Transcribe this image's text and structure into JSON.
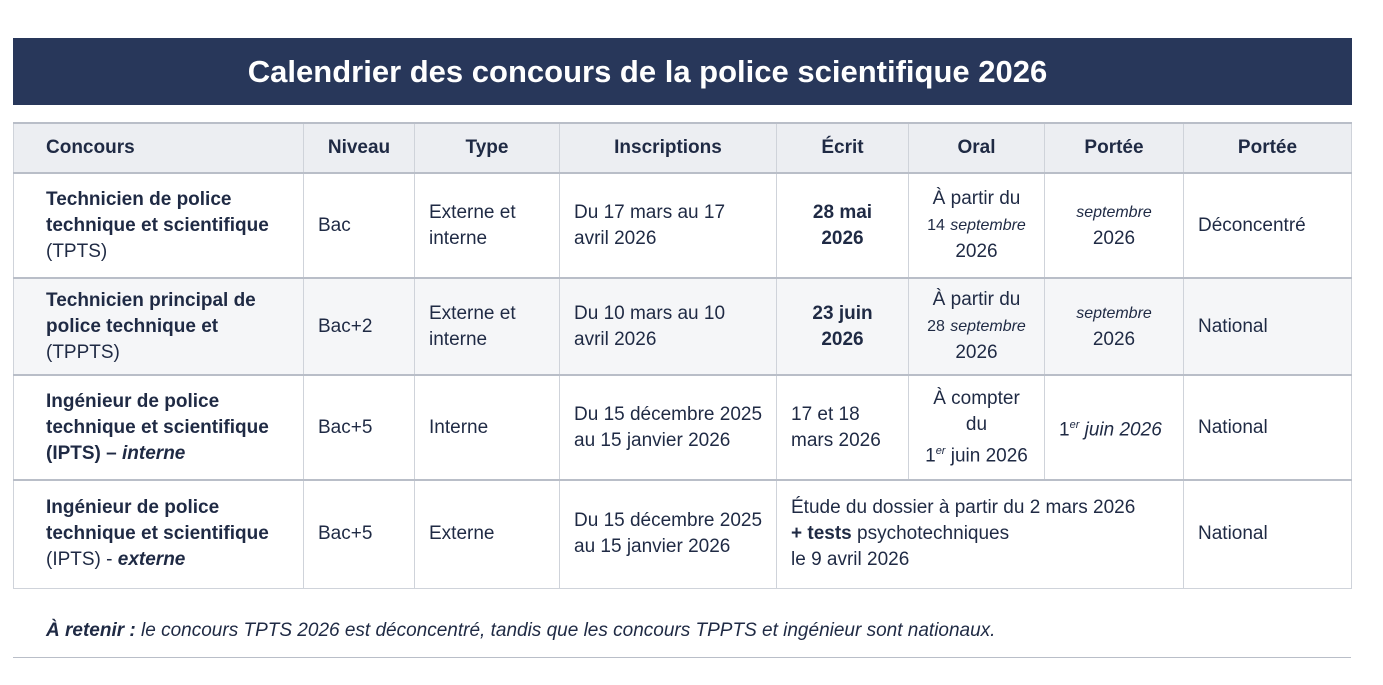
{
  "title": "Calendrier des concours de la police scientifique 2026",
  "headers": [
    "Concours",
    "Niveau",
    "Type",
    "Inscriptions",
    "Écrit",
    "Oral",
    "Portée",
    "Portée"
  ],
  "rows": [
    {
      "concours_bold": "Technicien de police technique et scientifique",
      "concours_abbr": "(TPTS)",
      "niveau": "Bac",
      "type": "Externe et interne",
      "inscriptions": "Du 17 mars au 17 avril 2026",
      "ecrit": "28 mai 2026",
      "oral_a": "À partir du",
      "oral_b": "14",
      "oral_c": "septembre",
      "oral_d": "2026",
      "portee1_a": "septembre",
      "portee1_b": "2026",
      "portee2": "Déconcentré"
    },
    {
      "concours_bold": "Technicien principal de police technique et",
      "concours_abbr": "(TPPTS)",
      "niveau": "Bac+2",
      "type": "Externe et interne",
      "inscriptions": "Du 10 mars au 10 avril 2026",
      "ecrit": "23 juin 2026",
      "oral_a": "À partir du",
      "oral_b": "28",
      "oral_c": "septembre",
      "oral_d": "2026",
      "portee1_a": "septembre",
      "portee1_b": "2026",
      "portee2": "National"
    },
    {
      "concours_bold": "Ingénieur de police technique et scientifique",
      "concours_abbr": "(IPTS) – ",
      "concours_it": "interne",
      "niveau": "Bac+5",
      "type": "Interne",
      "inscriptions": "Du 15 décembre 2025 au 15 janvier 2026",
      "ecrit": "17 et 18 mars 2026",
      "oral_a": "À compter du",
      "oral_b": "1",
      "oral_sup": "er",
      "oral_c": " juin 2026",
      "portee1_a": "1",
      "portee1_sup": "er",
      "portee1_b": " juin 2026",
      "portee2": "National"
    },
    {
      "concours_bold": "Ingénieur de police technique et scientifique",
      "concours_abbr": "(IPTS) - ",
      "concours_it": "externe",
      "niveau": "Bac+5",
      "type": "Externe",
      "inscriptions": "Du 15 décembre 2025 au 15 janvier 2026",
      "merged_a": "Étude du dossier à partir du 2 mars 2026",
      "merged_b": "+ tests",
      "merged_c": " psychotechniques",
      "merged_d": "le 9 avril 2026",
      "portee2": "National"
    }
  ],
  "note_bold": "À retenir :",
  "note_text": " le concours TPTS 2026 est déconcentré, tandis que les concours TPPTS et ingénieur sont nationaux.",
  "colors": {
    "title_bg": "#28375a",
    "header_bg": "#eceef2"
  }
}
